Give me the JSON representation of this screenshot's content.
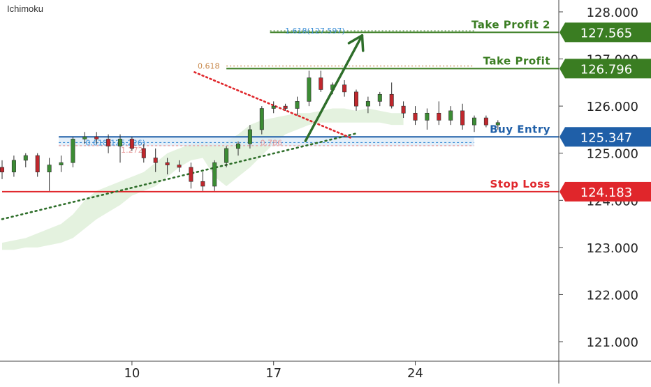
{
  "indicator_label": "Ichimoku",
  "colors": {
    "green": "#3a7d22",
    "blue": "#1f5fa8",
    "red": "#e0262b",
    "fib_orange": "#c8884a",
    "fib_blue": "#3d8fd6",
    "fib_pink": "#e89a9a",
    "cloud": "#e4f2df",
    "candle_up": "#3c8c34",
    "candle_down": "#c0272d",
    "trend_green": "#2e6e2a"
  },
  "chart_data": {
    "type": "candlestick",
    "title": "",
    "xlabel": "",
    "ylabel": "",
    "ylim": [
      120.5,
      128.25
    ],
    "xlim": [
      0,
      40
    ],
    "price_ticks": [
      "128.000",
      "127.000",
      "126.000",
      "125.000",
      "124.000",
      "123.000",
      "122.000",
      "121.000"
    ],
    "time_ticks": [
      {
        "label": "10",
        "x": 11
      },
      {
        "label": "17",
        "x": 23
      },
      {
        "label": "24",
        "x": 35
      }
    ],
    "levels": [
      {
        "name": "Take Profit 2",
        "price": 127.565,
        "price_label": "127.565",
        "color": "green",
        "x_start": 22.7
      },
      {
        "name": "Take Profit",
        "price": 126.796,
        "price_label": "126.796",
        "color": "green",
        "x_start": 19.0
      },
      {
        "name": "Buy Entry",
        "price": 125.347,
        "price_label": "125.347",
        "color": "blue",
        "x_start": 4.8
      },
      {
        "name": "Stop Loss",
        "price": 124.183,
        "price_label": "124.183",
        "color": "red",
        "x_start": 0
      }
    ],
    "fib_labels": [
      {
        "text": "1.618(127.597)",
        "x": 26.5,
        "price": 127.597,
        "color": "fib_blue"
      },
      {
        "text": "0.618",
        "x": 17.5,
        "price": 126.85,
        "color": "fib_orange"
      },
      {
        "text": "0.618(125.226)",
        "x": 9.6,
        "price": 125.226,
        "color": "fib_blue"
      },
      {
        "text": "1.272",
        "x": 11.0,
        "price": 125.07,
        "color": "fib_pink"
      },
      {
        "text": "0.786",
        "x": 22.8,
        "price": 125.226,
        "color": "fib_pink"
      }
    ],
    "fib_lines": [
      {
        "price": 127.597,
        "x0": 22.7,
        "x1": 40,
        "color": "green",
        "dash": "2,3"
      },
      {
        "price": 126.85,
        "x0": 19.0,
        "x1": 40,
        "color": "fib_orange",
        "dash": "2,3"
      },
      {
        "price": 125.226,
        "x0": 4.8,
        "x1": 40,
        "color": "fib_blue",
        "dash": "3,3"
      },
      {
        "price": 125.16,
        "x0": 4.8,
        "x1": 40,
        "color": "fib_pink",
        "dash": "3,3"
      }
    ],
    "entry_zone": {
      "low": 125.15,
      "high": 125.347,
      "x0": 4.8,
      "x1": 40
    },
    "trend_lines": [
      {
        "name": "support-trendline",
        "from": [
          0,
          123.6
        ],
        "to": [
          30.0,
          125.42
        ],
        "color": "trend_green",
        "dash": "2,5"
      },
      {
        "name": "resistance-trendline",
        "from": [
          16.3,
          126.72
        ],
        "to": [
          29.6,
          125.32
        ],
        "color": "red",
        "dash": "2,4"
      }
    ],
    "projection_arrow": {
      "from": [
        25.7,
        125.26
      ],
      "to": [
        30.5,
        127.5
      ]
    },
    "cloud_top": [
      [
        0,
        123.1
      ],
      [
        1,
        123.15
      ],
      [
        2,
        123.2
      ],
      [
        3,
        123.3
      ],
      [
        4,
        123.4
      ],
      [
        5,
        123.5
      ],
      [
        6,
        123.7
      ],
      [
        7,
        124.0
      ],
      [
        8,
        124.2
      ],
      [
        9,
        124.3
      ],
      [
        10,
        124.4
      ],
      [
        11,
        124.5
      ],
      [
        12,
        124.6
      ],
      [
        13,
        124.8
      ],
      [
        14,
        125.0
      ],
      [
        15,
        125.1
      ],
      [
        16,
        125.2
      ],
      [
        17,
        125.25
      ],
      [
        18,
        125.2
      ],
      [
        19,
        125.25
      ],
      [
        20,
        125.4
      ],
      [
        21,
        125.6
      ],
      [
        22,
        125.7
      ],
      [
        23,
        125.75
      ],
      [
        24,
        125.8
      ],
      [
        25,
        125.85
      ],
      [
        26,
        125.85
      ],
      [
        27,
        125.9
      ],
      [
        28,
        125.95
      ],
      [
        29,
        125.95
      ],
      [
        30,
        125.9
      ],
      [
        31,
        125.95
      ],
      [
        32,
        125.9
      ],
      [
        33,
        125.85
      ],
      [
        34,
        125.85
      ]
    ],
    "cloud_bottom": [
      [
        0,
        122.95
      ],
      [
        1,
        122.95
      ],
      [
        2,
        123.0
      ],
      [
        3,
        123.0
      ],
      [
        4,
        123.05
      ],
      [
        5,
        123.1
      ],
      [
        6,
        123.2
      ],
      [
        7,
        123.4
      ],
      [
        8,
        123.6
      ],
      [
        9,
        123.75
      ],
      [
        10,
        123.9
      ],
      [
        11,
        124.1
      ],
      [
        12,
        124.2
      ],
      [
        13,
        124.3
      ],
      [
        14,
        124.5
      ],
      [
        15,
        124.7
      ],
      [
        16,
        124.85
      ],
      [
        17,
        124.9
      ],
      [
        18,
        124.5
      ],
      [
        19,
        124.3
      ],
      [
        20,
        124.5
      ],
      [
        21,
        124.7
      ],
      [
        22,
        124.95
      ],
      [
        23,
        125.2
      ],
      [
        24,
        125.4
      ],
      [
        25,
        125.5
      ],
      [
        26,
        125.6
      ],
      [
        27,
        125.65
      ],
      [
        28,
        125.65
      ],
      [
        29,
        125.65
      ],
      [
        30,
        125.65
      ],
      [
        31,
        125.65
      ],
      [
        32,
        125.65
      ],
      [
        33,
        125.6
      ],
      [
        34,
        125.6
      ]
    ],
    "candles": [
      [
        124.7,
        124.85,
        124.45,
        124.6
      ],
      [
        124.6,
        124.95,
        124.5,
        124.85
      ],
      [
        124.85,
        125.0,
        124.7,
        124.95
      ],
      [
        124.95,
        125.0,
        124.5,
        124.6
      ],
      [
        124.6,
        124.9,
        124.2,
        124.75
      ],
      [
        124.75,
        124.95,
        124.6,
        124.8
      ],
      [
        124.8,
        125.35,
        124.7,
        125.3
      ],
      [
        125.3,
        125.45,
        125.2,
        125.35
      ],
      [
        125.35,
        125.45,
        125.2,
        125.3
      ],
      [
        125.3,
        125.4,
        125.0,
        125.15
      ],
      [
        125.15,
        125.4,
        124.8,
        125.3
      ],
      [
        125.3,
        125.35,
        125.05,
        125.1
      ],
      [
        125.1,
        125.2,
        124.8,
        124.9
      ],
      [
        124.9,
        125.1,
        124.6,
        124.8
      ],
      [
        124.8,
        124.9,
        124.55,
        124.75
      ],
      [
        124.75,
        124.85,
        124.6,
        124.7
      ],
      [
        124.7,
        124.8,
        124.25,
        124.4
      ],
      [
        124.4,
        124.6,
        124.2,
        124.3
      ],
      [
        124.3,
        124.85,
        124.2,
        124.8
      ],
      [
        124.8,
        125.15,
        124.7,
        125.1
      ],
      [
        125.1,
        125.25,
        124.95,
        125.2
      ],
      [
        125.2,
        125.6,
        125.1,
        125.5
      ],
      [
        125.5,
        126.0,
        125.4,
        125.95
      ],
      [
        125.95,
        126.1,
        125.85,
        126.0
      ],
      [
        126.0,
        126.05,
        125.9,
        125.95
      ],
      [
        125.95,
        126.2,
        125.8,
        126.1
      ],
      [
        126.1,
        126.75,
        126.0,
        126.6
      ],
      [
        126.6,
        126.75,
        126.3,
        126.35
      ],
      [
        126.35,
        126.5,
        126.25,
        126.45
      ],
      [
        126.45,
        126.55,
        126.2,
        126.3
      ],
      [
        126.3,
        126.35,
        125.9,
        126.0
      ],
      [
        126.0,
        126.2,
        125.85,
        126.1
      ],
      [
        126.1,
        126.3,
        126.0,
        126.25
      ],
      [
        126.25,
        126.5,
        125.95,
        126.0
      ],
      [
        126.0,
        126.1,
        125.75,
        125.85
      ],
      [
        125.85,
        126.0,
        125.6,
        125.7
      ],
      [
        125.7,
        125.95,
        125.5,
        125.85
      ],
      [
        125.85,
        126.1,
        125.6,
        125.7
      ],
      [
        125.7,
        126.0,
        125.6,
        125.9
      ],
      [
        125.9,
        126.05,
        125.5,
        125.6
      ],
      [
        125.6,
        125.8,
        125.45,
        125.75
      ],
      [
        125.75,
        125.8,
        125.55,
        125.6
      ],
      [
        125.6,
        125.7,
        125.5,
        125.65
      ]
    ]
  }
}
